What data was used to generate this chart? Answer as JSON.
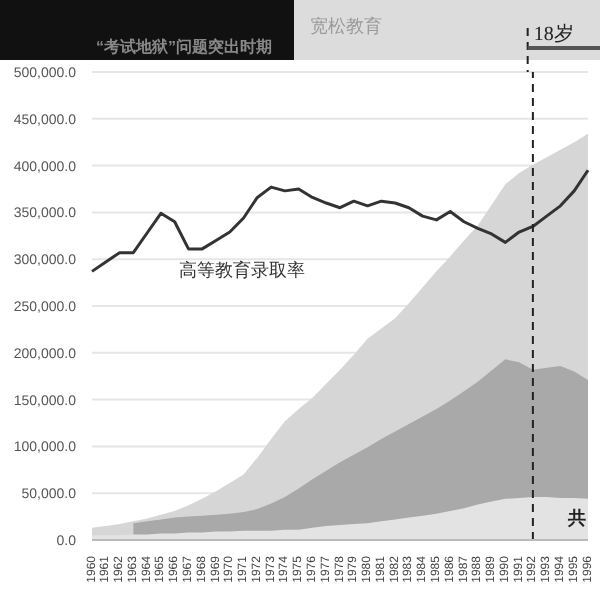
{
  "chart_data": {
    "type": "area",
    "categories": [
      "1960",
      "1961",
      "1962",
      "1963",
      "1964",
      "1965",
      "1966",
      "1967",
      "1968",
      "1969",
      "1970",
      "1971",
      "1972",
      "1973",
      "1974",
      "1975",
      "1976",
      "1977",
      "1978",
      "1979",
      "1980",
      "1981",
      "1982",
      "1983",
      "1984",
      "1985",
      "1986",
      "1987",
      "1988",
      "1989",
      "1990",
      "1991",
      "1992",
      "1993",
      "1994",
      "1995",
      "1996"
    ],
    "series": [
      {
        "color": "#d6d6d6",
        "values": [
          13000,
          15000,
          17000,
          20000,
          23000,
          27000,
          31000,
          37000,
          44000,
          52000,
          61000,
          70000,
          88000,
          108000,
          127000,
          140000,
          152000,
          167000,
          182000,
          198000,
          215000,
          226000,
          237000,
          253000,
          270000,
          287000,
          303000,
          320000,
          336000,
          358000,
          380000,
          392000,
          401000,
          409000,
          417000,
          425000,
          434000
        ]
      },
      {
        "color": "#a9a9a9",
        "values": [
          null,
          null,
          null,
          18000,
          20000,
          22000,
          24000,
          25000,
          26000,
          27000,
          28000,
          30000,
          33000,
          39000,
          46000,
          55000,
          65000,
          74000,
          83000,
          91000,
          99000,
          108000,
          116000,
          124000,
          132000,
          140000,
          149000,
          159000,
          169000,
          181000,
          193000,
          190000,
          182000,
          184000,
          186000,
          180000,
          171000
        ]
      },
      {
        "color": "#e3e3e3",
        "values": [
          5000,
          5000,
          5000,
          6000,
          6000,
          7000,
          7000,
          8000,
          8000,
          9000,
          9000,
          10000,
          10000,
          10000,
          11000,
          11000,
          13000,
          15000,
          16000,
          17000,
          18000,
          20000,
          22000,
          24000,
          26000,
          28000,
          31000,
          34000,
          38000,
          41000,
          44000,
          45000,
          46000,
          46000,
          45000,
          45000,
          44000
        ]
      },
      {
        "type": "line",
        "name": "高等教育录取率",
        "color": "#333333",
        "values": [
          287000,
          297000,
          307000,
          307000,
          328000,
          349000,
          340000,
          311000,
          311000,
          320000,
          329000,
          344000,
          366000,
          377000,
          373000,
          375000,
          366000,
          360000,
          355000,
          362000,
          357000,
          362000,
          360000,
          355000,
          346000,
          342000,
          351000,
          340000,
          333000,
          327000,
          318000,
          329000,
          335000,
          346000,
          357000,
          373000,
          395000
        ]
      }
    ],
    "ylim": [
      0,
      500000
    ],
    "yticks": [
      {
        "value": 0,
        "label": "0.0"
      },
      {
        "value": 50000,
        "label": "50,000.0"
      },
      {
        "value": 100000,
        "label": "100,000.0"
      },
      {
        "value": 150000,
        "label": "150,000.0"
      },
      {
        "value": 200000,
        "label": "200,000.0"
      },
      {
        "value": 250000,
        "label": "250,000.0"
      },
      {
        "value": 300000,
        "label": "300,000.0"
      },
      {
        "value": 350000,
        "label": "350,000.0"
      },
      {
        "value": 400000,
        "label": "400,000.0"
      },
      {
        "value": 450000,
        "label": "450,000.0"
      },
      {
        "value": 500000,
        "label": "500,000.0"
      }
    ],
    "grid": "y",
    "marker": "none",
    "line_style": "solid",
    "legend": false,
    "ref_lines": [
      {
        "axis": "x",
        "value": "1992",
        "label": "18岁",
        "line_style": "dashed",
        "color": "#222222"
      }
    ],
    "annotations": [
      "“考试地狱”问题突出时期",
      "宽松教育",
      "共"
    ]
  }
}
